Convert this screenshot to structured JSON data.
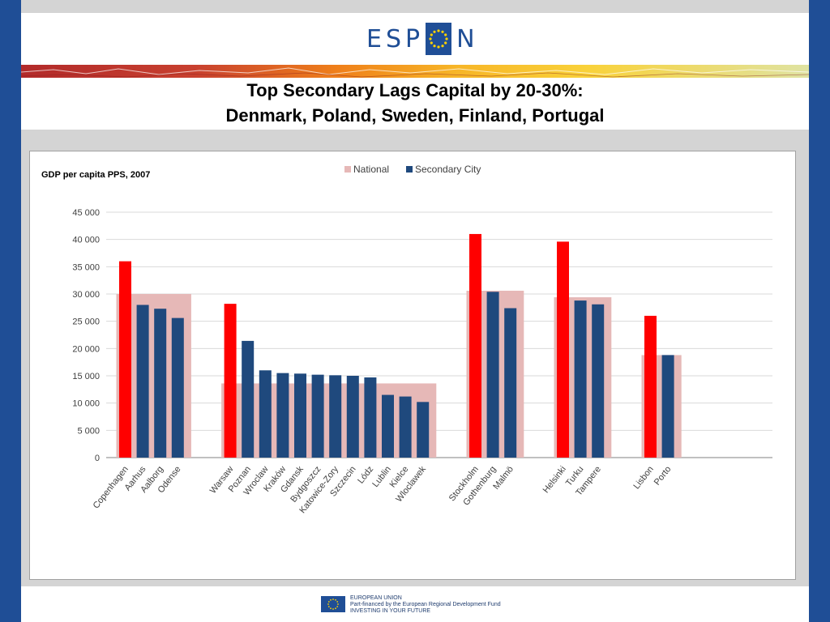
{
  "header": {
    "logo_left": "ESP",
    "logo_right": "N"
  },
  "slide": {
    "title_line1": "Top Secondary Lags Capital by 20-30%:",
    "title_line2": "Denmark, Poland, Sweden, Finland, Portugal"
  },
  "footer": {
    "line1": "EUROPEAN UNION",
    "line2": "Part-financed by the European Regional Development Fund",
    "line3": "INVESTING IN YOUR FUTURE"
  },
  "colors": {
    "brand": "#1f4e96",
    "national": "#e6b8b7",
    "secondary": "#1f497d",
    "capital": "#ff0000"
  },
  "chart_data": {
    "type": "bar",
    "title": "GDP per capita PPS, 2007",
    "legend": [
      "National",
      "Secondary City"
    ],
    "legend_position": "top",
    "ylim": [
      0,
      45000
    ],
    "yticks": [
      "0",
      "5 000",
      "10 000",
      "15 000",
      "20 000",
      "25 000",
      "30 000",
      "35 000",
      "40 000",
      "45 000"
    ],
    "grid": true,
    "groups": [
      {
        "national": 30000,
        "cities": [
          {
            "name": "Copenhagen",
            "value": 36000,
            "capital": true
          },
          {
            "name": "Aarhus",
            "value": 28000
          },
          {
            "name": "Aalborg",
            "value": 27300
          },
          {
            "name": "Odense",
            "value": 25600
          }
        ]
      },
      {
        "national": 13600,
        "cities": [
          {
            "name": "Warsaw",
            "value": 28200,
            "capital": true
          },
          {
            "name": "Poznan",
            "value": 21400
          },
          {
            "name": "Wroclaw",
            "value": 16000
          },
          {
            "name": "Kraków",
            "value": 15500
          },
          {
            "name": "Gdansk",
            "value": 15400
          },
          {
            "name": "Bydgoszcz",
            "value": 15200
          },
          {
            "name": "Katowice-Zory",
            "value": 15100
          },
          {
            "name": "Szczecin",
            "value": 15000
          },
          {
            "name": "Lódz",
            "value": 14700
          },
          {
            "name": "Lublin",
            "value": 11500
          },
          {
            "name": "Kielce",
            "value": 11200
          },
          {
            "name": "Wloclawek",
            "value": 10200
          }
        ]
      },
      {
        "national": 30600,
        "cities": [
          {
            "name": "Stockholm",
            "value": 41000,
            "capital": true
          },
          {
            "name": "Gothenburg",
            "value": 30400
          },
          {
            "name": "Malmö",
            "value": 27400
          }
        ]
      },
      {
        "national": 29400,
        "cities": [
          {
            "name": "Helsinki",
            "value": 39600,
            "capital": true
          },
          {
            "name": "Turku",
            "value": 28800
          },
          {
            "name": "Tampere",
            "value": 28100
          }
        ]
      },
      {
        "national": 18800,
        "cities": [
          {
            "name": "Lisbon",
            "value": 26000,
            "capital": true
          },
          {
            "name": "Porto",
            "value": 18800
          }
        ]
      }
    ]
  }
}
